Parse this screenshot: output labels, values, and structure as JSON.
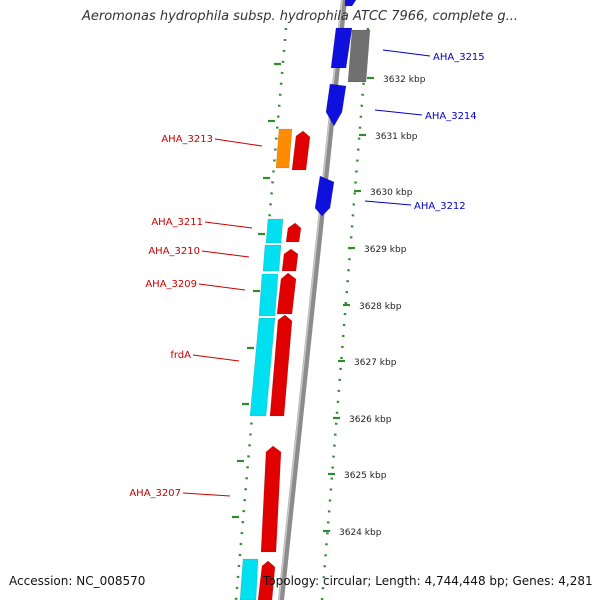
{
  "title": "Aeromonas hydrophila subsp. hydrophila ATCC 7966, complete g...",
  "footer": {
    "accession": "Accession: NC_008570",
    "summary": "Topology: circular; Length: 4,744,448 bp; Genes: 4,281"
  },
  "colors": {
    "backbone": "#8c8c8c",
    "tick_dots": "#2e8b2e",
    "forward_label": "#0000cc",
    "reverse_label": "#cc0000",
    "blue": "#1010dd",
    "gray": "#707070",
    "red": "#e00000",
    "orange": "#ff8c00",
    "cyan": "#00e0f0",
    "scale_text": "#222222"
  },
  "scale_labels": [
    "3632 kbp",
    "3631 kbp",
    "3630 kbp",
    "3629 kbp",
    "3628 kbp",
    "3627 kbp",
    "3626 kbp",
    "3625 kbp",
    "3624 kbp"
  ],
  "gene_labels": [
    {
      "text": "AHA_3215",
      "strand": "forward"
    },
    {
      "text": "AHA_3214",
      "strand": "forward"
    },
    {
      "text": "AHA_3212",
      "strand": "forward"
    },
    {
      "text": "AHA_3213",
      "strand": "reverse"
    },
    {
      "text": "AHA_3211",
      "strand": "reverse"
    },
    {
      "text": "AHA_3210",
      "strand": "reverse"
    },
    {
      "text": "AHA_3209",
      "strand": "reverse"
    },
    {
      "text": "frdA",
      "strand": "reverse"
    },
    {
      "text": "AHA_3207",
      "strand": "reverse"
    }
  ],
  "feature_colors": [
    "blue",
    "blue",
    "gray",
    "blue",
    "blue",
    "orange",
    "red",
    "red",
    "cyan",
    "red",
    "cyan",
    "red",
    "cyan",
    "red",
    "cyan",
    "red",
    "cyan",
    "red"
  ]
}
